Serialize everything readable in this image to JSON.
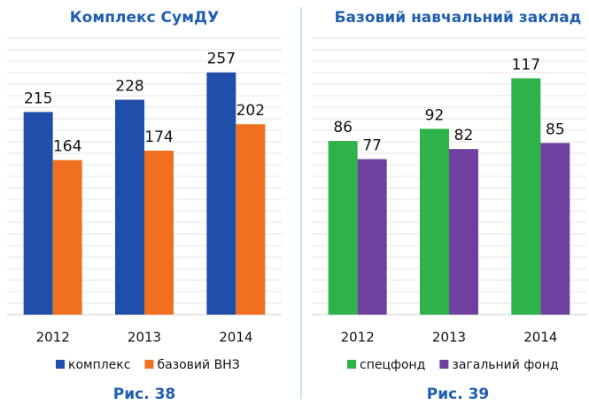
{
  "chart_data": [
    {
      "type": "bar",
      "title": "Комплекс СумДУ",
      "caption": "Рис. 38",
      "categories": [
        "2012",
        "2013",
        "2014"
      ],
      "ylim": [
        0,
        300
      ],
      "series": [
        {
          "name": "комплекс",
          "color": "#1f4fa8",
          "values": [
            215,
            228,
            257
          ]
        },
        {
          "name": "базовий ВНЗ",
          "color": "#f07020",
          "values": [
            164,
            174,
            202
          ]
        }
      ]
    },
    {
      "type": "bar",
      "title": "Базовий навчальний заклад",
      "caption": "Рис. 39",
      "categories": [
        "2012",
        "2013",
        "2014"
      ],
      "ylim": [
        0,
        140
      ],
      "series": [
        {
          "name": "спецфонд",
          "color": "#2db34a",
          "values": [
            86,
            92,
            117
          ]
        },
        {
          "name": "загальний фонд",
          "color": "#7040a0",
          "values": [
            77,
            82,
            85
          ]
        }
      ]
    }
  ]
}
